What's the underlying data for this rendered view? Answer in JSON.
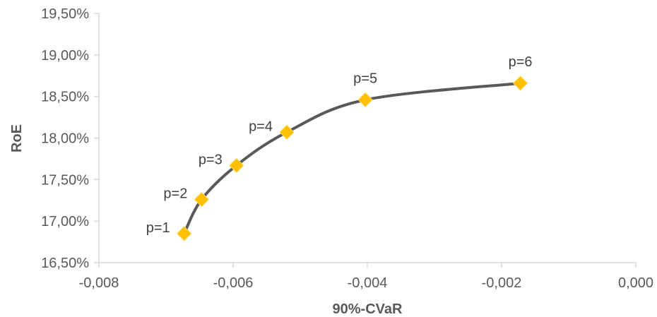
{
  "chart_data": {
    "type": "scatter",
    "title": "",
    "xlabel": "90%-CVaR",
    "ylabel": "RoE",
    "xlim": [
      -0.008,
      0.0
    ],
    "ylim": [
      16.5,
      19.5
    ],
    "x_ticks": [
      -0.008,
      -0.006,
      -0.004,
      -0.002,
      0.0
    ],
    "x_tick_labels": [
      "-0,008",
      "-0,006",
      "-0,004",
      "-0,002",
      "0,000"
    ],
    "y_ticks": [
      16.5,
      17.0,
      17.5,
      18.0,
      18.5,
      19.0,
      19.5
    ],
    "y_tick_labels": [
      "16,50%",
      "17,00%",
      "17,50%",
      "18,00%",
      "18,50%",
      "19,00%",
      "19,50%"
    ],
    "grid": false,
    "legend": "none",
    "line_color": "#595959",
    "marker_color": "#FFC000",
    "series": [
      {
        "points": [
          {
            "x": -0.00673,
            "y": 16.85,
            "label": "p=1"
          },
          {
            "x": -0.00647,
            "y": 17.26,
            "label": "p=2"
          },
          {
            "x": -0.00595,
            "y": 17.67,
            "label": "p=3"
          },
          {
            "x": -0.0052,
            "y": 18.07,
            "label": "p=4"
          },
          {
            "x": -0.00403,
            "y": 18.46,
            "label": "p=5"
          },
          {
            "x": -0.00172,
            "y": 18.66,
            "label": "p=6"
          }
        ]
      }
    ]
  }
}
